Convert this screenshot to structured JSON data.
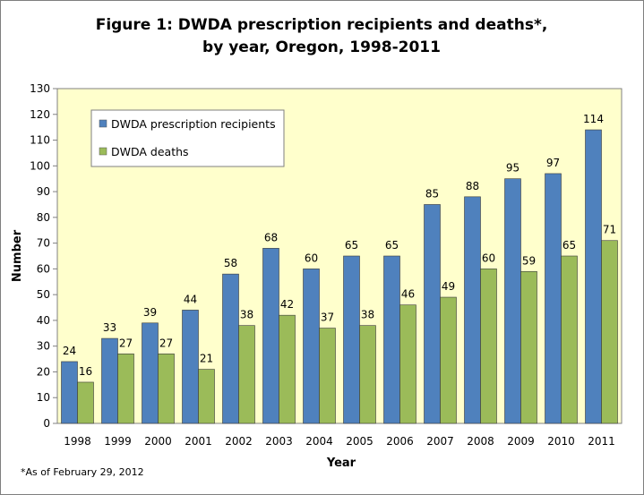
{
  "chart_data": {
    "type": "bar",
    "title_line1": "Figure 1: DWDA prescription recipients and deaths*,",
    "title_line2": "by year, Oregon, 1998-2011",
    "xlabel": "Year",
    "ylabel": "Number",
    "ylim": [
      0,
      130
    ],
    "ytick_step": 10,
    "categories": [
      "1998",
      "1999",
      "2000",
      "2001",
      "2002",
      "2003",
      "2004",
      "2005",
      "2006",
      "2007",
      "2008",
      "2009",
      "2010",
      "2011"
    ],
    "series": [
      {
        "name": "DWDA prescription recipients",
        "color": "#4f81bd",
        "values": [
          24,
          33,
          39,
          44,
          58,
          68,
          60,
          65,
          65,
          85,
          88,
          95,
          97,
          114
        ]
      },
      {
        "name": "DWDA deaths",
        "color": "#9bbb59",
        "values": [
          16,
          27,
          27,
          21,
          38,
          42,
          37,
          38,
          46,
          49,
          60,
          59,
          65,
          71
        ]
      }
    ],
    "plot_background": "#ffffcc",
    "grid": false,
    "legend_position": "top-left",
    "footnote": "*As of February 29, 2012"
  }
}
